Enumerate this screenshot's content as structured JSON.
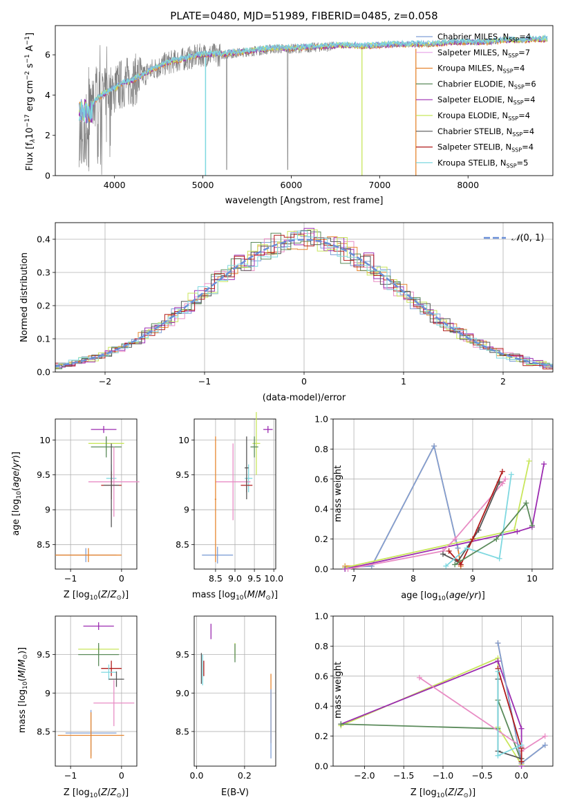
{
  "title": "PLATE=0480, MJD=51989, FIBERID=0485, z=0.058",
  "colors": {
    "Chabrier MILES": "#7f9fd6",
    "Salpeter MILES": "#e6a0e6",
    "Kroupa MILES": "#e6852f",
    "Chabrier ELODIE": "#5a8a5a",
    "Salpeter ELODIE": "#9b2bb0",
    "Kroupa ELODIE": "#c8e65a",
    "Chabrier STELIB": "#555555",
    "Salpeter STELIB": "#b01a1a",
    "Kroupa STELIB": "#7ed8e0",
    "Pink": "#e88cc4",
    "Data": "#808080",
    "Gaussian": "#6a8fd8"
  },
  "chart_data": [
    {
      "type": "line",
      "name": "spectrum",
      "xlabel": "wavelength [Angstrom, rest frame]",
      "ylabel_main": "Flux [f",
      "ylabel_rest": "10",
      "ylabel_unit": "erg cm",
      "ylabel_end": "s",
      "ylabel_end2": "A",
      "xlim": [
        3330,
        8960
      ],
      "ylim": [
        0,
        7.45
      ],
      "xticks": [
        4000,
        5000,
        6000,
        7000,
        8000
      ],
      "yticks": [
        0,
        2,
        4,
        6
      ],
      "legend": [
        {
          "label": "Chabrier MILES, N",
          "sub": "SSP",
          "n": "=4",
          "color": "#7f9fd6"
        },
        {
          "label": "Salpeter MILES, N",
          "sub": "SSP",
          "n": "=7",
          "color": "#e6a0e6"
        },
        {
          "label": "Kroupa MILES, N",
          "sub": "SSP",
          "n": "=4",
          "color": "#e6852f"
        },
        {
          "label": "Chabrier ELODIE, N",
          "sub": "SSP",
          "n": "=6",
          "color": "#5a8a5a"
        },
        {
          "label": "Salpeter ELODIE, N",
          "sub": "SSP",
          "n": "=4",
          "color": "#9b2bb0"
        },
        {
          "label": "Kroupa ELODIE, N",
          "sub": "SSP",
          "n": "=4",
          "color": "#c8e65a"
        },
        {
          "label": "Chabrier STELIB, N",
          "sub": "SSP",
          "n": "=4",
          "color": "#555555"
        },
        {
          "label": "Salpeter STELIB, N",
          "sub": "SSP",
          "n": "=4",
          "color": "#b01a1a"
        },
        {
          "label": "Kroupa STELIB, N",
          "sub": "SSP",
          "n": "=5",
          "color": "#7ed8e0"
        }
      ],
      "continuum": {
        "x": [
          3600,
          3700,
          3800,
          3900,
          4000,
          4100,
          4200,
          4300,
          4400,
          4600,
          4800,
          5000,
          5200,
          5400,
          5600,
          5800,
          6000,
          6200,
          6400,
          6600,
          6800,
          7000,
          7200,
          7400,
          7600,
          7800,
          8000,
          8200,
          8400,
          8600,
          8800
        ],
        "y": [
          2.7,
          3.1,
          3.8,
          4.1,
          4.3,
          4.6,
          4.7,
          4.9,
          5.2,
          5.6,
          5.8,
          6.0,
          6.0,
          6.1,
          6.2,
          6.3,
          6.3,
          6.35,
          6.4,
          6.45,
          6.4,
          6.45,
          6.5,
          6.5,
          6.5,
          6.6,
          6.6,
          6.6,
          6.7,
          6.7,
          6.75
        ]
      }
    },
    {
      "type": "line",
      "name": "residuals",
      "xlabel": "(data-model)/error",
      "ylabel": "Normed distribution",
      "xlim": [
        -2.5,
        2.5
      ],
      "ylim": [
        0,
        0.45
      ],
      "xticks": [
        -2,
        -1,
        0,
        1,
        2
      ],
      "yticks": [
        0.0,
        0.1,
        0.2,
        0.3,
        0.4
      ],
      "legend_label": "(0, 1)",
      "legend_symbol": "𝒩"
    },
    {
      "type": "scatter",
      "name": "age-vs-Z",
      "xlabel": "Z [log",
      "xlabel_sub": "10",
      "xlabel_rest": "(Z/Z",
      "xlabel_end": ")]",
      "ylabel": "age  [log",
      "ylabel_rest": "(age/yr)]",
      "xlim": [
        -1.3,
        0.3
      ],
      "ylim": [
        8.15,
        10.3
      ],
      "xticks": [
        -1,
        0
      ],
      "yticks": [
        8.5,
        9.0,
        9.5,
        10.0
      ],
      "points": [
        {
          "x": -0.35,
          "y": 10.15,
          "xerr": 0.25,
          "yerr": 0.05,
          "color": "#9b2bb0"
        },
        {
          "x": -0.3,
          "y": 9.95,
          "xerr": 0.35,
          "yerr": 0.1,
          "color": "#c8e65a"
        },
        {
          "x": -0.3,
          "y": 9.9,
          "xerr": 0.3,
          "yerr": 0.15,
          "color": "#5a8a5a"
        },
        {
          "x": -0.2,
          "y": 9.45,
          "xerr": 0.1,
          "yerr": 0.2,
          "color": "#7ed8e0"
        },
        {
          "x": -0.15,
          "y": 9.4,
          "xerr": 0.5,
          "yerr": 0.5,
          "color": "#e88cc4"
        },
        {
          "x": -0.2,
          "y": 9.35,
          "xerr": 0.2,
          "yerr": 0.2,
          "color": "#b01a1a"
        },
        {
          "x": -0.2,
          "y": 9.35,
          "xerr": 0.15,
          "yerr": 0.6,
          "color": "#555555"
        },
        {
          "x": -0.7,
          "y": 8.35,
          "xerr": 0.6,
          "yerr": 0.1,
          "color": "#7f9fd6"
        },
        {
          "x": -0.65,
          "y": 8.35,
          "xerr": 0.65,
          "yerr": 0.1,
          "color": "#e6852f"
        }
      ]
    },
    {
      "type": "scatter",
      "name": "age-vs-mass",
      "xlabel": "mass [log",
      "xlabel_rest": "(M/M",
      "xlim": [
        7.95,
        10.05
      ],
      "ylim": [
        8.15,
        10.3
      ],
      "xticks": [
        8.5,
        9.0,
        9.5,
        10.0
      ],
      "xtick_labels": [
        "8.5",
        "9.0",
        "9.5",
        "10.0"
      ],
      "yticks": [
        8.5,
        9.0,
        9.5,
        10.0
      ]
    },
    {
      "type": "line",
      "name": "weight-vs-age",
      "xlabel": "age  [log",
      "xlabel_rest": "(age/yr)]",
      "ylabel": "mass weight",
      "xlim": [
        6.65,
        10.35
      ],
      "ylim": [
        0,
        1.0
      ],
      "xticks": [
        7,
        8,
        9,
        10
      ],
      "yticks": [
        0.0,
        0.2,
        0.4,
        0.6,
        0.8,
        1.0
      ],
      "series": [
        {
          "color": "#e6852f",
          "x": [
            6.85,
            7.3,
            8.35,
            8.75,
            8.8
          ],
          "y": [
            0.02,
            0.02,
            0.82,
            0.14,
            0.02
          ]
        },
        {
          "color": "#7f9fd6",
          "x": [
            6.85,
            7.3,
            8.35,
            8.75
          ],
          "y": [
            0.01,
            0.02,
            0.82,
            0.14
          ]
        },
        {
          "color": "#c8e65a",
          "x": [
            6.85,
            9.7,
            9.95
          ],
          "y": [
            0.01,
            0.26,
            0.72
          ]
        },
        {
          "color": "#9b2bb0",
          "x": [
            6.85,
            9.75,
            10.0,
            10.2
          ],
          "y": [
            0.0,
            0.25,
            0.28,
            0.7
          ]
        },
        {
          "color": "#e88cc4",
          "x": [
            6.9,
            8.5,
            8.7,
            9.5,
            9.55
          ],
          "y": [
            0.0,
            0.12,
            0.2,
            0.57,
            0.6
          ]
        },
        {
          "color": "#555555",
          "x": [
            8.5,
            8.75,
            9.1,
            9.45
          ],
          "y": [
            0.1,
            0.05,
            0.26,
            0.58
          ]
        },
        {
          "color": "#b01a1a",
          "x": [
            8.6,
            8.8,
            9.0,
            9.5
          ],
          "y": [
            0.12,
            0.03,
            0.2,
            0.65
          ]
        },
        {
          "color": "#7ed8e0",
          "x": [
            8.55,
            8.9,
            9.45,
            9.65
          ],
          "y": [
            0.02,
            0.14,
            0.07,
            0.63
          ]
        },
        {
          "color": "#5a8a5a",
          "x": [
            8.7,
            9.4,
            9.9,
            10.0
          ],
          "y": [
            0.03,
            0.2,
            0.44,
            0.29
          ]
        }
      ]
    },
    {
      "type": "scatter",
      "name": "mass-vs-Z",
      "xlabel": "Z [log",
      "ylabel": "mass [log",
      "xlim": [
        -1.3,
        0.3
      ],
      "ylim": [
        8.05,
        10.0
      ],
      "xticks": [
        -1,
        0
      ],
      "yticks": [
        8.5,
        9.0,
        9.5
      ]
    },
    {
      "type": "scatter",
      "name": "mass-vs-ebv",
      "xlabel": "E(B-V)",
      "xlim": [
        -0.01,
        0.33
      ],
      "ylim": [
        8.05,
        10.0
      ],
      "xticks": [
        0.0,
        0.2
      ],
      "xtick_labels": [
        "0.0",
        "0.2"
      ],
      "yticks": [
        8.5,
        9.0,
        9.5
      ]
    },
    {
      "type": "line",
      "name": "weight-vs-Z",
      "xlabel": "Z [log",
      "ylabel": "mass weight",
      "xlim": [
        -2.4,
        0.4
      ],
      "ylim": [
        0,
        1.0
      ],
      "xticks": [
        -2.0,
        -1.5,
        -1.0,
        -0.5,
        0.0
      ],
      "xtick_labels": [
        "−2.0",
        "−1.5",
        "−1.0",
        "−0.5",
        "0.0"
      ],
      "yticks": [
        0.0,
        0.2,
        0.4,
        0.6,
        0.8,
        1.0
      ]
    }
  ]
}
